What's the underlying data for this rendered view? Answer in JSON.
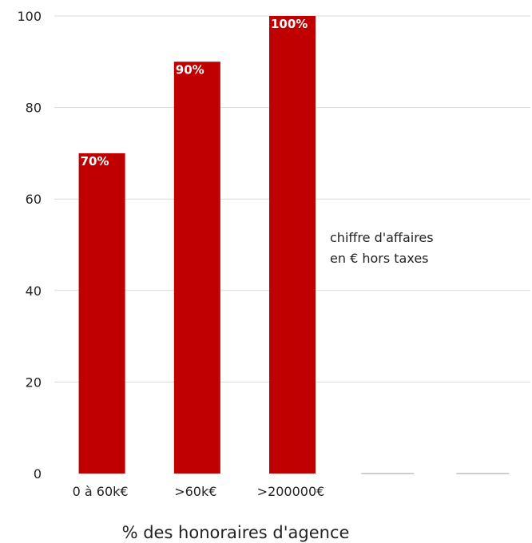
{
  "chart_data": {
    "type": "bar",
    "categories": [
      "0 à 60k€",
      ">60k€",
      ">200000€",
      "",
      ""
    ],
    "values": [
      70,
      90,
      100,
      0,
      0
    ],
    "data_labels": [
      "70%",
      "90%",
      "100%",
      "",
      ""
    ],
    "xlabel": "% des honoraires d'agence",
    "ylabel": "",
    "ylim": [
      0,
      100
    ],
    "yticks": [
      0,
      20,
      40,
      60,
      80,
      100
    ],
    "grid": true,
    "annotation": [
      "chiffre d'affaires",
      "en € hors taxes"
    ],
    "colors": {
      "bar": "#c00000",
      "grid": "#d9d9d9",
      "axis": "#bfbfbf"
    }
  }
}
